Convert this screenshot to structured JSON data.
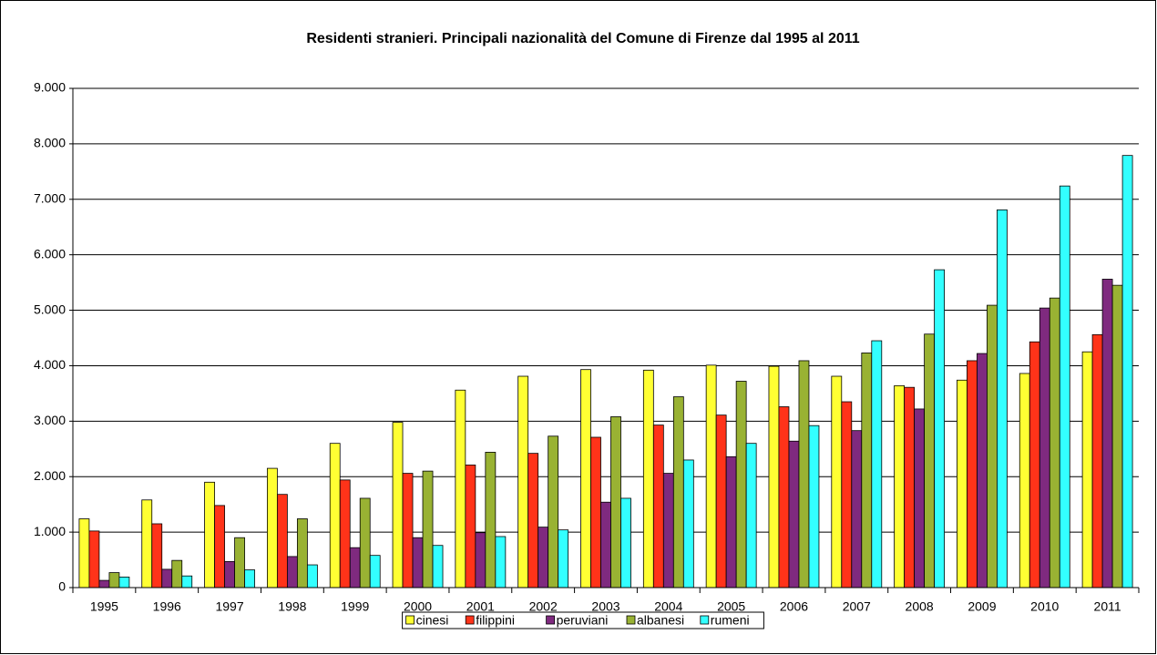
{
  "chart_data": {
    "type": "bar",
    "title": "Residenti stranieri. Principali nazionalità del Comune di Firenze dal 1995 al 2011",
    "categories": [
      "1995",
      "1996",
      "1997",
      "1998",
      "1999",
      "2000",
      "2001",
      "2002",
      "2003",
      "2004",
      "2005",
      "2006",
      "2007",
      "2008",
      "2009",
      "2010",
      "2011"
    ],
    "series": [
      {
        "name": "cinesi",
        "color": "#ffff33",
        "values": [
          1240,
          1580,
          1900,
          2150,
          2600,
          2980,
          3560,
          3810,
          3930,
          3920,
          4010,
          3990,
          3810,
          3640,
          3740,
          3860,
          4250
        ]
      },
      {
        "name": "filippini",
        "color": "#ff3319",
        "values": [
          1020,
          1150,
          1480,
          1680,
          1940,
          2060,
          2210,
          2420,
          2710,
          2930,
          3110,
          3260,
          3350,
          3610,
          4090,
          4430,
          4560
        ]
      },
      {
        "name": "peruviani",
        "color": "#7f2a7f",
        "values": [
          130,
          330,
          470,
          560,
          720,
          900,
          990,
          1090,
          1540,
          2060,
          2360,
          2640,
          2830,
          3220,
          4220,
          5040,
          5560
        ]
      },
      {
        "name": "albanesi",
        "color": "#99b233",
        "values": [
          270,
          490,
          900,
          1240,
          1610,
          2100,
          2440,
          2730,
          3080,
          3440,
          3720,
          4090,
          4230,
          4570,
          5090,
          5220,
          5450
        ]
      },
      {
        "name": "rumeni",
        "color": "#33ffff",
        "values": [
          190,
          210,
          320,
          410,
          580,
          760,
          920,
          1040,
          1610,
          2300,
          2600,
          2920,
          4450,
          5730,
          6810,
          7240,
          7790
        ]
      }
    ],
    "ylim": [
      0,
      9000
    ],
    "yticks": [
      0,
      {
        "value": 1000,
        "label": "1.000"
      },
      {
        "value": 2000,
        "label": "2.000"
      },
      {
        "value": 3000,
        "label": "3.000"
      },
      {
        "value": 4000,
        "label": "4.000"
      },
      {
        "value": 5000,
        "label": "5.000"
      },
      {
        "value": 6000,
        "label": "6.000"
      },
      {
        "value": 7000,
        "label": "7.000"
      },
      {
        "value": 8000,
        "label": "8.000"
      },
      {
        "value": 9000,
        "label": "9.000"
      }
    ],
    "grid": true,
    "legend": "bottom"
  }
}
